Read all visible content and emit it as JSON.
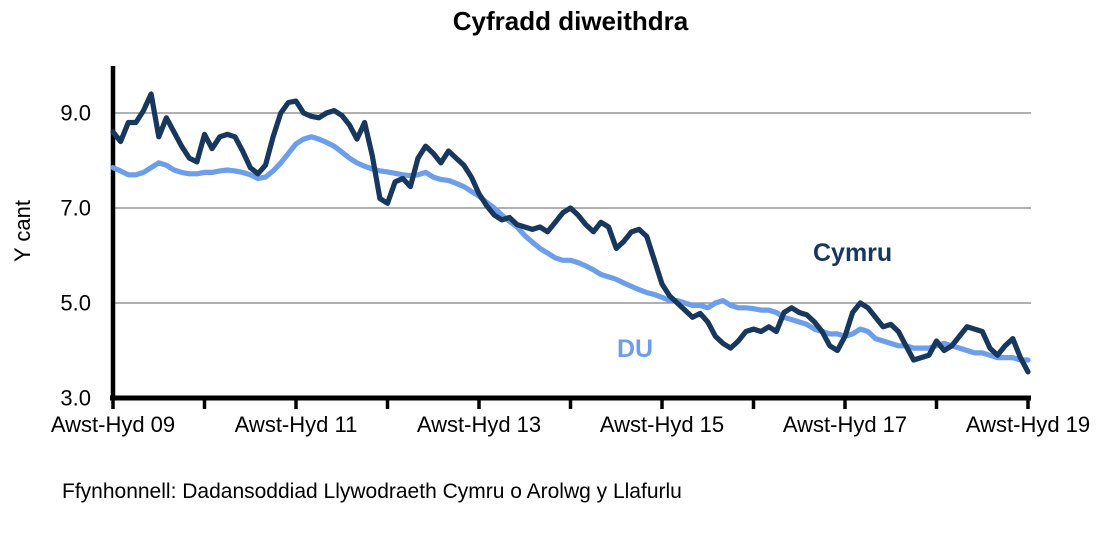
{
  "header": {
    "title": "Cyfradd diweithdra"
  },
  "y_axis": {
    "label": "Y cant"
  },
  "annotations": {
    "cymru_label": "Cymru",
    "du_label": "DU"
  },
  "source": {
    "text": "Ffynhonnell: Dadansoddiad Llywodraeth Cymru o Arolwg y Llafurlu"
  },
  "colors": {
    "cymru": "#17375D",
    "du": "#6D9EEB",
    "gridline": "#808080",
    "axis": "#000000",
    "text": "#000000",
    "background": "#FFFFFF"
  },
  "chart_data": {
    "type": "line",
    "title": "Cyfradd diweithdra",
    "ylabel": "Y cant",
    "ylim": [
      3.0,
      9.5
    ],
    "yticks": [
      9.0,
      7.0,
      5.0,
      3.0
    ],
    "grid_yticks": [
      9.0,
      7.0,
      5.0
    ],
    "grid": "horizontal",
    "legend_position": "inline-annotations",
    "x_tick_labels": [
      "Awst-Hyd 09",
      "Awst-Hyd 11",
      "Awst-Hyd 13",
      "Awst-Hyd 15",
      "Awst-Hyd 17",
      "Awst-Hyd 19"
    ],
    "x_minor_ticks": 11,
    "points_per_year": 12,
    "series": [
      {
        "name": "Cymru",
        "color": "#17375D",
        "values": [
          8.6,
          8.4,
          8.8,
          8.8,
          9.05,
          9.4,
          8.5,
          8.9,
          8.6,
          8.3,
          8.05,
          7.97,
          8.55,
          8.25,
          8.5,
          8.55,
          8.5,
          8.2,
          7.85,
          7.72,
          7.9,
          8.5,
          9.0,
          9.22,
          9.25,
          9.0,
          8.93,
          8.9,
          9.0,
          9.05,
          8.95,
          8.75,
          8.45,
          8.8,
          8.1,
          7.2,
          7.1,
          7.55,
          7.62,
          7.45,
          8.05,
          8.3,
          8.15,
          7.95,
          8.2,
          8.05,
          7.9,
          7.65,
          7.3,
          7.05,
          6.85,
          6.75,
          6.8,
          6.65,
          6.6,
          6.55,
          6.6,
          6.5,
          6.7,
          6.9,
          7.0,
          6.85,
          6.65,
          6.5,
          6.7,
          6.6,
          6.15,
          6.3,
          6.5,
          6.55,
          6.4,
          5.9,
          5.4,
          5.15,
          5.0,
          4.85,
          4.7,
          4.78,
          4.6,
          4.3,
          4.15,
          4.05,
          4.2,
          4.4,
          4.45,
          4.4,
          4.5,
          4.4,
          4.8,
          4.9,
          4.8,
          4.75,
          4.6,
          4.4,
          4.1,
          4.0,
          4.3,
          4.8,
          5.0,
          4.9,
          4.7,
          4.5,
          4.55,
          4.4,
          4.1,
          3.8,
          3.85,
          3.9,
          4.2,
          4.0,
          4.1,
          4.3,
          4.5,
          4.45,
          4.4,
          4.05,
          3.9,
          4.1,
          4.25,
          3.85,
          3.55
        ]
      },
      {
        "name": "DU",
        "color": "#6D9EEB",
        "values": [
          7.85,
          7.78,
          7.7,
          7.7,
          7.75,
          7.85,
          7.95,
          7.9,
          7.8,
          7.75,
          7.72,
          7.72,
          7.75,
          7.75,
          7.78,
          7.8,
          7.78,
          7.75,
          7.7,
          7.62,
          7.65,
          7.78,
          7.95,
          8.15,
          8.35,
          8.45,
          8.5,
          8.45,
          8.38,
          8.3,
          8.18,
          8.05,
          7.95,
          7.88,
          7.82,
          7.78,
          7.76,
          7.73,
          7.7,
          7.68,
          7.7,
          7.75,
          7.65,
          7.6,
          7.58,
          7.52,
          7.45,
          7.35,
          7.25,
          7.12,
          7.0,
          6.85,
          6.72,
          6.6,
          6.42,
          6.28,
          6.15,
          6.05,
          5.95,
          5.9,
          5.9,
          5.85,
          5.78,
          5.7,
          5.6,
          5.55,
          5.5,
          5.42,
          5.35,
          5.28,
          5.22,
          5.18,
          5.12,
          5.05,
          5.05,
          5.0,
          4.95,
          4.95,
          4.9,
          5.0,
          5.05,
          4.95,
          4.9,
          4.9,
          4.88,
          4.85,
          4.85,
          4.8,
          4.7,
          4.65,
          4.6,
          4.55,
          4.45,
          4.4,
          4.35,
          4.35,
          4.3,
          4.35,
          4.45,
          4.4,
          4.25,
          4.2,
          4.15,
          4.1,
          4.1,
          4.05,
          4.05,
          4.05,
          4.1,
          4.15,
          4.1,
          4.05,
          4.0,
          3.95,
          3.95,
          3.9,
          3.85,
          3.85,
          3.85,
          3.8,
          3.8
        ]
      }
    ]
  }
}
